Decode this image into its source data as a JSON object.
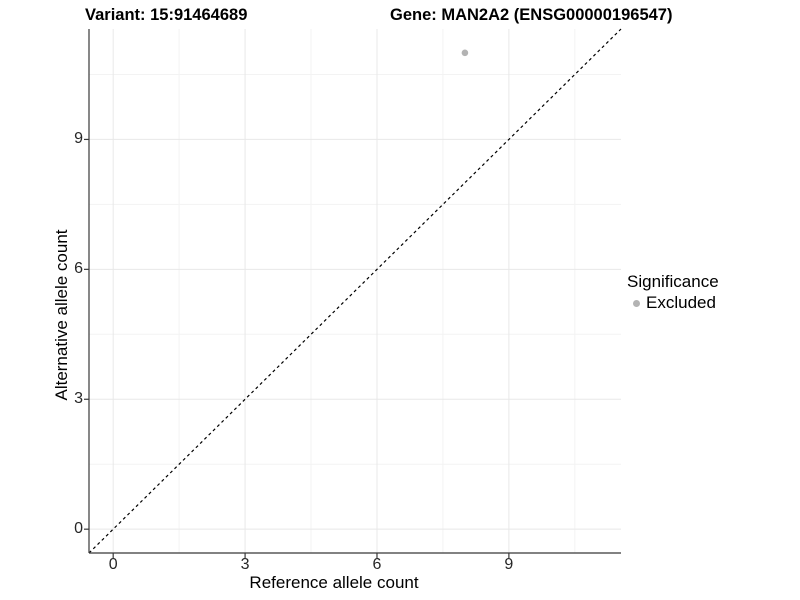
{
  "titles": {
    "variant": "Variant: 15:91464689",
    "gene": "Gene: MAN2A2 (ENSG00000196547)"
  },
  "chart_data": {
    "type": "scatter",
    "xlabel": "Reference allele count",
    "ylabel": "Alternative allele count",
    "x_ticks": [
      0,
      3,
      6,
      9
    ],
    "y_ticks": [
      0,
      3,
      6,
      9
    ],
    "x_minor_ticks": [
      1.5,
      4.5,
      7.5,
      10.5
    ],
    "y_minor_ticks": [
      1.5,
      4.5,
      7.5,
      10.5
    ],
    "xlim": [
      -0.55,
      11.55
    ],
    "ylim": [
      -0.55,
      11.55
    ],
    "grid": true,
    "identity_line": {
      "slope": 1,
      "intercept": 0,
      "style": "dashed",
      "color": "#000000"
    },
    "series": [
      {
        "name": "Excluded",
        "color": "#b3b3b3",
        "points": [
          {
            "x": 8,
            "y": 11
          }
        ]
      }
    ],
    "legend": {
      "title": "Significance",
      "position": "right",
      "entries": [
        {
          "label": "Excluded",
          "color": "#b3b3b3"
        }
      ]
    }
  },
  "colors": {
    "background": "#ffffff",
    "grid_major": "#e8e8e8",
    "grid_minor": "#f3f3f3",
    "axis": "#383838",
    "tick": "#383838",
    "point": "#b3b3b3",
    "identity_line": "#000000"
  }
}
